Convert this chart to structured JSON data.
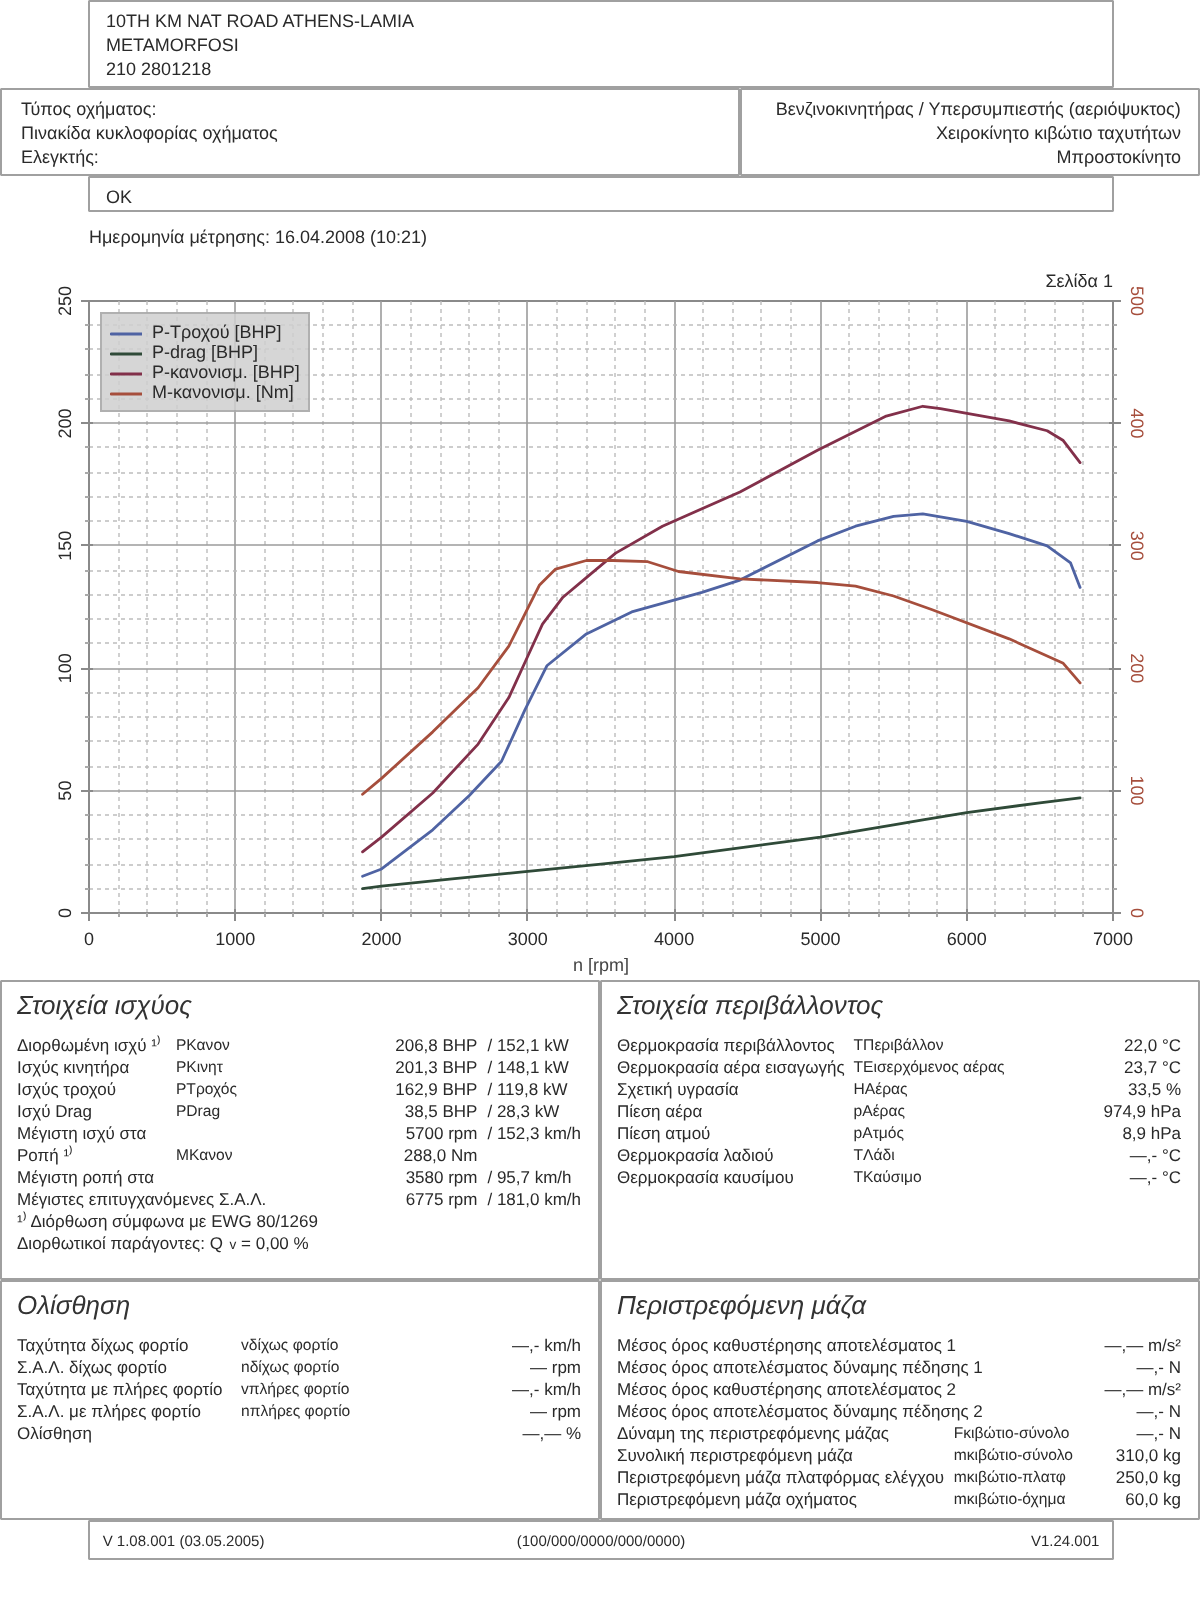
{
  "chart_data": [
    {
      "type": "other",
      "annotations": [
        "10TH KM NAT ROAD ATHENS-LAMIA",
        "METAMORFOSI",
        "210 2801218"
      ]
    },
    {
      "type": "other",
      "annotations": [
        "Τύπος οχήματος:",
        "Πινακίδα κυκλοφορίας οχήματος",
        "Ελεγκτής:"
      ]
    },
    {
      "type": "other",
      "annotations": [
        "Βενζινοκινητήρας / Υπερσυμπιεστής (αεριόψυκτος)",
        "Χειροκίνητο κιβώτιο ταχυτήτων",
        "Μπροστοκίνητο"
      ]
    },
    {
      "type": "other",
      "annotations": [
        "OK"
      ]
    },
    {
      "type": "line",
      "title": "Ημερομηνία μέτρησης: 16.04.2008 (10:21)",
      "annotations": [
        "Σελίδα 1"
      ],
      "xlabel": "n [rpm]",
      "xlim": [
        0,
        7000
      ],
      "xticks": [
        0,
        1000,
        2000,
        3000,
        4000,
        5000,
        6000,
        7000
      ],
      "ylim": [
        0,
        250
      ],
      "yticks": [
        0,
        50,
        100,
        150,
        200,
        250
      ],
      "y2lim": [
        0,
        500
      ],
      "y2ticks": [
        0,
        100,
        200,
        300,
        400,
        500
      ],
      "grid": true,
      "legend": "top left",
      "series": [
        {
          "name": "P-Τροχού [BHP]",
          "color": "#4f63a3",
          "x": [
            1870,
            2000,
            2350,
            2600,
            2820,
            2980,
            3130,
            3400,
            3710,
            4190,
            4450,
            4980,
            5240,
            5500,
            5700,
            6000,
            6290,
            6550,
            6710,
            6775
          ],
          "values": [
            15,
            18,
            34,
            48,
            62,
            83,
            101,
            114,
            123,
            131,
            136,
            152,
            158,
            162,
            163,
            160,
            155,
            150,
            143,
            133
          ]
        },
        {
          "name": "P-drag [BHP]",
          "color": "#2f4a38",
          "x": [
            1870,
            2000,
            2500,
            3000,
            3500,
            4000,
            4500,
            5000,
            5500,
            5700,
            6000,
            6500,
            6775
          ],
          "values": [
            10,
            11,
            14,
            17,
            20,
            23,
            27,
            31,
            36,
            38,
            41,
            45,
            47
          ]
        },
        {
          "name": "P-κανονισμ. [BHP]",
          "color": "#82304a",
          "x": [
            1870,
            2000,
            2350,
            2660,
            2870,
            3000,
            3100,
            3240,
            3400,
            3600,
            3920,
            4450,
            4980,
            5450,
            5700,
            5820,
            6290,
            6550,
            6660,
            6775
          ],
          "values": [
            25,
            31,
            49,
            69,
            88,
            105,
            118,
            129,
            137,
            147,
            158,
            172,
            189,
            203,
            207,
            206,
            201,
            197,
            193,
            184
          ]
        },
        {
          "name": "M-κανονισμ. [Nm]",
          "color": "#a64e3c",
          "axis": "y2",
          "x": [
            1870,
            2000,
            2350,
            2660,
            2870,
            3000,
            3080,
            3190,
            3400,
            3580,
            3820,
            4030,
            4450,
            4980,
            5240,
            5500,
            5760,
            6290,
            6660,
            6775
          ],
          "values": [
            97,
            110,
            148,
            184,
            218,
            249,
            268,
            281,
            288,
            288,
            287,
            279,
            273,
            270,
            267,
            259,
            248,
            224,
            204,
            188
          ]
        }
      ]
    },
    {
      "type": "other",
      "title": "Στοιχεία ισχύος",
      "annotations": [
        "Διορθωμένη ισχύ ¹⁾  P$_{Κανον}$  206,8 BHP  / 152,1 kW",
        "Ισχύς κινητήρα  P$_{Κινητ}$  201,3 BHP  / 148,1 kW",
        "Ισχύς τροχού  P$_{Τροχός}$  162,9 BHP  / 119,8 kW",
        "Ισχύ Drag  P$_{Drag}$  38,5 BHP  / 28,3 kW",
        "Μέγιστη ισχύ στα  5700 rpm  / 152,3 km/h",
        "Ροπή ¹⁾  M$_{Κανον}$  288,0 Nm",
        "Μέγιστη ροπή στα  3580 rpm  / 95,7 km/h",
        "Μέγιστες επιτυγχανόμενες Σ.Α.Λ.  6775 rpm  / 181,0 km/h",
        "¹⁾ Διόρθωση σύμφωνα με EWG 80/1269",
        "Διορθωτικοί παράγοντες: Q$_{v}$ = 0,00 %"
      ]
    },
    {
      "type": "other",
      "title": "Στοιχεία περιβάλλοντος",
      "annotations": [
        "Θερμοκρασία περιβάλλοντος  T$_{Περιβάλλον}$  22,0 °C",
        "Θερμοκρασία αέρα εισαγωγής  T$_{Εισερχόμενος αέρας}$  23,7 °C",
        "Σχετική υγρασία  H$_{Αέρας}$  33,5 %",
        "Πίεση αέρα  p$_{Αέρας}$  974,9 hPa",
        "Πίεση ατμού  p$_{Ατμός}$  8,9 hPa",
        "Θερμοκρασία λαδιού  T$_{Λάδι}$  —,- °C",
        "Θερμοκρασία καυσίμου  T$_{Καύσιμο}$  —,- °C"
      ]
    },
    {
      "type": "other",
      "title": "Ολίσθηση",
      "annotations": [
        "Ταχύτητα δίχως φορτίο  v$_{δίχως φορτίο}$  —,- km/h",
        "Σ.Α.Λ. δίχως φορτίο  n$_{δίχως φορτίο}$  — rpm",
        "Ταχύτητα με πλήρες φορτίο  v$_{πλήρες φορτίο}$  —,- km/h",
        "Σ.Α.Λ. με πλήρες φορτίο  n$_{πλήρες φορτίο}$  — rpm",
        "Ολίσθηση  —,— %"
      ]
    },
    {
      "type": "other",
      "title": "Περιστρεφόμενη μάζα",
      "annotations": [
        "Μέσος όρος καθυστέρησης αποτελέσματος 1  —,— m/s²",
        "Μέσος όρος αποτελέσματος δύναμης πέδησης 1  —,- N",
        "Μέσος όρος καθυστέρησης αποτελέσματος 2  —,— m/s²",
        "Μέσος όρος αποτελέσματος δύναμης πέδησης 2  —,- N",
        "Δύναμη της περιστρεφόμενης μάζας  F$_{κιβώτιο-σύνολο}$  —,- N",
        "Συνολική περιστρεφόμενη μάζα  m$_{κιβώτιο-σύνολο}$  310,0 kg",
        "Περιστρεφόμενη μάζα πλατφόρμας ελέγχου  m$_{κιβώτιο-πλατφ}$  250,0 kg",
        "Περιστρεφόμενη μάζα οχήματος  m$_{κιβώτιο-όχημα}$  60,0 kg"
      ]
    },
    {
      "type": "other",
      "annotations": [
        "V 1.08.001 (03.05.2005)",
        "(100/000/0000/000/0000)",
        "V1.24.001"
      ]
    }
  ]
}
